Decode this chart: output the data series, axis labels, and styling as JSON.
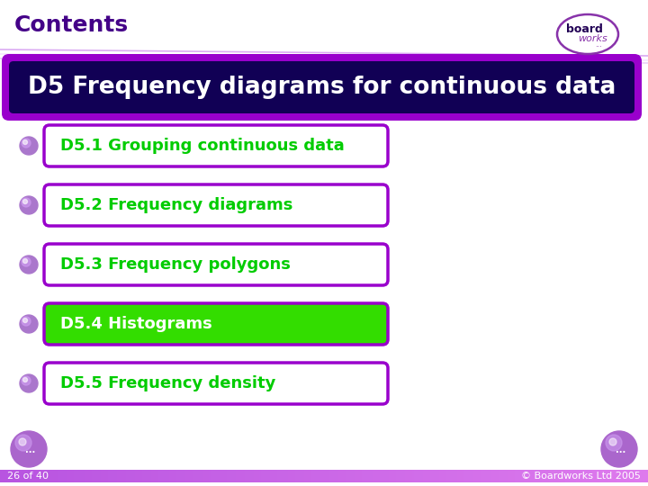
{
  "bg_color": "#ffffff",
  "title_text": "Contents",
  "title_color": "#440088",
  "title_fontsize": 18,
  "header_text": "D5 Frequency diagrams for continuous data",
  "header_bg": "#110055",
  "header_border_color": "#9900cc",
  "header_text_color": "#ffffff",
  "header_fontsize": 19,
  "items": [
    {
      "text": "D5.1 Grouping continuous data",
      "filled": false
    },
    {
      "text": "D5.2 Frequency diagrams",
      "filled": false
    },
    {
      "text": "D5.3 Frequency polygons",
      "filled": false
    },
    {
      "text": "D5.4 Histograms",
      "filled": true
    },
    {
      "text": "D5.5 Frequency density",
      "filled": false
    }
  ],
  "item_text_color": "#00cc00",
  "item_border_color": "#9900cc",
  "item_fill_color": "#33dd00",
  "item_filled_text_color": "#ffffff",
  "item_fontsize": 13,
  "bullet_color_outer": "#aa77cc",
  "bullet_color_inner": "#cc99ee",
  "footer_bar_color": "#bb55dd",
  "footer_text_left": "26 of 40",
  "footer_text_right": "© Boardworks Ltd 2005",
  "footer_text_color": "#ffffff",
  "footer_fontsize": 8,
  "nav_button_color_outer": "#aa66cc",
  "nav_button_color_inner": "#cc99ee",
  "logo_border_color": "#8833aa",
  "logo_text1": "board",
  "logo_text2": "works",
  "diag_line_color1": "#cc88ee",
  "diag_line_color2": "#eeccff",
  "white": "#ffffff"
}
